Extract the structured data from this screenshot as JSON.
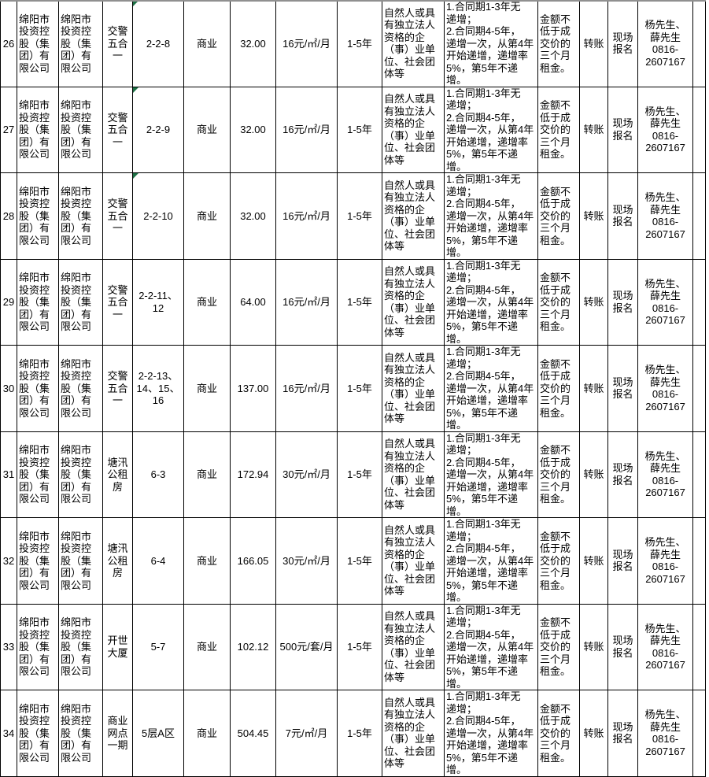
{
  "colors": {
    "grid_line": "#000000",
    "error_indicator_green": "#1e7145",
    "top_edge_gray": "#909090",
    "text": "#000000",
    "background": "#ffffff"
  },
  "columns": [
    {
      "key": "num",
      "label": "row-number"
    },
    {
      "key": "owner",
      "label": "owner-company"
    },
    {
      "key": "manager",
      "label": "managing-company"
    },
    {
      "key": "property",
      "label": "property-name"
    },
    {
      "key": "unit",
      "label": "unit-number"
    },
    {
      "key": "type",
      "label": "use-type"
    },
    {
      "key": "area",
      "label": "area"
    },
    {
      "key": "price",
      "label": "rent-price"
    },
    {
      "key": "term",
      "label": "lease-term"
    },
    {
      "key": "eligibility",
      "label": "bidder-eligibility"
    },
    {
      "key": "increase",
      "label": "rent-increase-terms"
    },
    {
      "key": "deposit",
      "label": "deposit-requirement"
    },
    {
      "key": "payment",
      "label": "payment-method"
    },
    {
      "key": "signup",
      "label": "registration-method"
    },
    {
      "key": "contact",
      "label": "contact-info"
    },
    {
      "key": "blank",
      "label": "empty-cell"
    }
  ],
  "rows": [
    {
      "num": "26",
      "owner": "绵阳市\n投资控\n股（集\n团）有\n限公司",
      "manager": "绵阳市\n投资控\n股（集\n团）有\n限公司",
      "property": "交警\n五合\n一",
      "unit": "2-2-8",
      "error_indicator": true,
      "type": "商业",
      "area": "32.00",
      "price": "16元/㎡/月",
      "term": "1-5年",
      "eligibility": "自然人或具\n有独立法人\n资格的企\n（事）业单\n位、社会团\n体等",
      "increase": "1.合同期1-3年无\n递增；\n2.合同期4-5年，\n递增一次，从第4年\n开始递增，递增率\n5%，第5年不递增。",
      "deposit": "金额不\n低于成\n交价的\n三个月\n租金。",
      "payment": "转账",
      "signup": "现场\n报名",
      "contact": "杨先生、\n薛先生\n0816-\n2607167"
    },
    {
      "num": "27",
      "owner": "绵阳市\n投资控\n股（集\n团）有\n限公司",
      "manager": "绵阳市\n投资控\n股（集\n团）有\n限公司",
      "property": "交警\n五合\n一",
      "unit": "2-2-9",
      "error_indicator": true,
      "type": "商业",
      "area": "32.00",
      "price": "16元/㎡/月",
      "term": "1-5年",
      "eligibility": "自然人或具\n有独立法人\n资格的企\n（事）业单\n位、社会团\n体等",
      "increase": "1.合同期1-3年无\n递增；\n2.合同期4-5年，\n递增一次，从第4年\n开始递增，递增率\n5%，第5年不递增。",
      "deposit": "金额不\n低于成\n交价的\n三个月\n租金。",
      "payment": "转账",
      "signup": "现场\n报名",
      "contact": "杨先生、\n薛先生\n0816-\n2607167"
    },
    {
      "num": "28",
      "owner": "绵阳市\n投资控\n股（集\n团）有\n限公司",
      "manager": "绵阳市\n投资控\n股（集\n团）有\n限公司",
      "property": "交警\n五合\n一",
      "unit": "2-2-10",
      "error_indicator": true,
      "type": "商业",
      "area": "32.00",
      "price": "16元/㎡/月",
      "term": "1-5年",
      "eligibility": "自然人或具\n有独立法人\n资格的企\n（事）业单\n位、社会团\n体等",
      "increase": "1.合同期1-3年无\n递增；\n2.合同期4-5年，\n递增一次，从第4年\n开始递增，递增率\n5%，第5年不递增。",
      "deposit": "金额不\n低于成\n交价的\n三个月\n租金。",
      "payment": "转账",
      "signup": "现场\n报名",
      "contact": "杨先生、\n薛先生\n0816-\n2607167"
    },
    {
      "num": "29",
      "owner": "绵阳市\n投资控\n股（集\n团）有\n限公司",
      "manager": "绵阳市\n投资控\n股（集\n团）有\n限公司",
      "property": "交警\n五合\n一",
      "unit": "2-2-11、\n12",
      "error_indicator": false,
      "type": "商业",
      "area": "64.00",
      "price": "16元/㎡/月",
      "term": "1-5年",
      "eligibility": "自然人或具\n有独立法人\n资格的企\n（事）业单\n位、社会团\n体等",
      "increase": "1.合同期1-3年无\n递增；\n2.合同期4-5年，\n递增一次，从第4年\n开始递增，递增率\n5%，第5年不递增。",
      "deposit": "金额不\n低于成\n交价的\n三个月\n租金。",
      "payment": "转账",
      "signup": "现场\n报名",
      "contact": "杨先生、\n薛先生\n0816-\n2607167"
    },
    {
      "num": "30",
      "owner": "绵阳市\n投资控\n股（集\n团）有\n限公司",
      "manager": "绵阳市\n投资控\n股（集\n团）有\n限公司",
      "property": "交警\n五合\n一",
      "unit": "2-2-13、\n14、15、\n16",
      "error_indicator": false,
      "type": "商业",
      "area": "137.00",
      "price": "16元/㎡/月",
      "term": "1-5年",
      "eligibility": "自然人或具\n有独立法人\n资格的企\n（事）业单\n位、社会团\n体等",
      "increase": "1.合同期1-3年无\n递增；\n2.合同期4-5年，\n递增一次，从第4年\n开始递增，递增率\n5%，第5年不递增。",
      "deposit": "金额不\n低于成\n交价的\n三个月\n租金。",
      "payment": "转账",
      "signup": "现场\n报名",
      "contact": "杨先生、\n薛先生\n0816-\n2607167"
    },
    {
      "num": "31",
      "owner": "绵阳市\n投资控\n股（集\n团）有\n限公司",
      "manager": "绵阳市\n投资控\n股（集\n团）有\n限公司",
      "property": "塘汛\n公租\n房",
      "unit": "6-3",
      "error_indicator": false,
      "type": "商业",
      "area": "172.94",
      "price": "30元/㎡/月",
      "term": "1-5年",
      "eligibility": "自然人或具\n有独立法人\n资格的企\n（事）业单\n位、社会团\n体等",
      "increase": "1.合同期1-3年无\n递增；\n2.合同期4-5年，\n递增一次，从第4年\n开始递增，递增率\n5%，第5年不递增。",
      "deposit": "金额不\n低于成\n交价的\n三个月\n租金。",
      "payment": "转账",
      "signup": "现场\n报名",
      "contact": "杨先生、\n薛先生\n0816-\n2607167"
    },
    {
      "num": "32",
      "owner": "绵阳市\n投资控\n股（集\n团）有\n限公司",
      "manager": "绵阳市\n投资控\n股（集\n团）有\n限公司",
      "property": "塘汛\n公租\n房",
      "unit": "6-4",
      "error_indicator": false,
      "type": "商业",
      "area": "166.05",
      "price": "30元/㎡/月",
      "term": "1-5年",
      "eligibility": "自然人或具\n有独立法人\n资格的企\n（事）业单\n位、社会团\n体等",
      "increase": "1.合同期1-3年无\n递增；\n2.合同期4-5年，\n递增一次，从第4年\n开始递增，递增率\n5%，第5年不递增。",
      "deposit": "金额不\n低于成\n交价的\n三个月\n租金。",
      "payment": "转账",
      "signup": "现场\n报名",
      "contact": "杨先生、\n薛先生\n0816-\n2607167"
    },
    {
      "num": "33",
      "owner": "绵阳市\n投资控\n股（集\n团）有\n限公司",
      "manager": "绵阳市\n投资控\n股（集\n团）有\n限公司",
      "property": "开世\n大厦",
      "unit": "5-7",
      "error_indicator": false,
      "type": "商业",
      "area": "102.12",
      "price": "500元/套/月",
      "term": "1-5年",
      "eligibility": "自然人或具\n有独立法人\n资格的企\n（事）业单\n位、社会团\n体等",
      "increase": "1.合同期1-3年无\n递增；\n2.合同期4-5年，\n递增一次，从第4年\n开始递增，递增率\n5%，第5年不递增。",
      "deposit": "金额不\n低于成\n交价的\n三个月\n租金。",
      "payment": "转账",
      "signup": "现场\n报名",
      "contact": "杨先生、\n薛先生\n0816-\n2607167"
    },
    {
      "num": "34",
      "owner": "绵阳市\n投资控\n股（集\n团）有\n限公司",
      "manager": "绵阳市\n投资控\n股（集\n团）有\n限公司",
      "property": "商业\n网点\n一期",
      "unit": "5层A区",
      "error_indicator": false,
      "type": "商业",
      "area": "504.45",
      "price": "7元/㎡/月",
      "term": "1-5年",
      "eligibility": "自然人或具\n有独立法人\n资格的企\n（事）业单\n位、社会团\n体等",
      "increase": "1.合同期1-3年无\n递增；\n2.合同期4-5年，\n递增一次，从第4年\n开始递增，递增率\n5%，第5年不递增。",
      "deposit": "金额不\n低于成\n交价的\n三个月\n租金。",
      "payment": "转账",
      "signup": "现场\n报名",
      "contact": "杨先生、\n薛先生\n0816-\n2607167"
    }
  ]
}
